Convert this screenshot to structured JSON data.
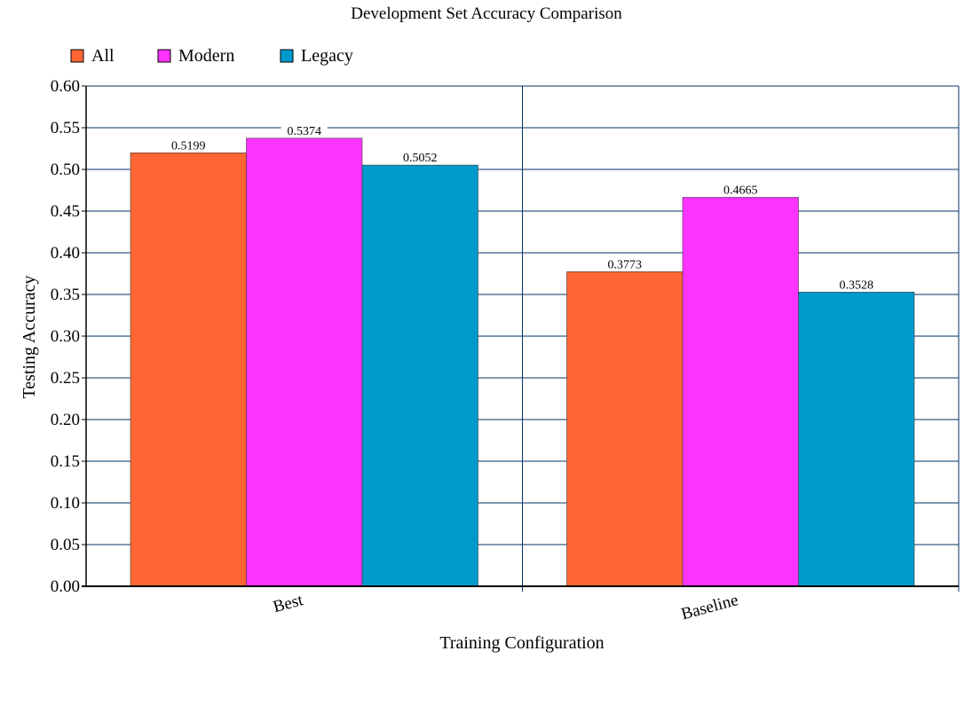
{
  "chart_data": {
    "type": "bar",
    "title": "Development Set Accuracy Comparison",
    "xlabel": "Training Configuration",
    "ylabel": "Testing Accuracy",
    "categories": [
      "Best",
      "Baseline"
    ],
    "series": [
      {
        "name": "All",
        "values": [
          0.5199,
          0.3773
        ],
        "color": "#ff6633"
      },
      {
        "name": "Modern",
        "values": [
          0.5374,
          0.4665
        ],
        "color": "#ff33ff"
      },
      {
        "name": "Legacy",
        "values": [
          0.5052,
          0.3528
        ],
        "color": "#0099cc"
      }
    ],
    "data_labels": [
      [
        "0.5199",
        "0.3773"
      ],
      [
        "0.5374",
        "0.4665"
      ],
      [
        "0.5052",
        "0.3528"
      ]
    ],
    "ylim": [
      0,
      0.6
    ],
    "yticks": [
      "0.00",
      "0.05",
      "0.10",
      "0.15",
      "0.20",
      "0.25",
      "0.30",
      "0.35",
      "0.40",
      "0.45",
      "0.50",
      "0.55",
      "0.60"
    ],
    "grid": true,
    "grid_color": "#003366",
    "legend_position": "top-left"
  }
}
